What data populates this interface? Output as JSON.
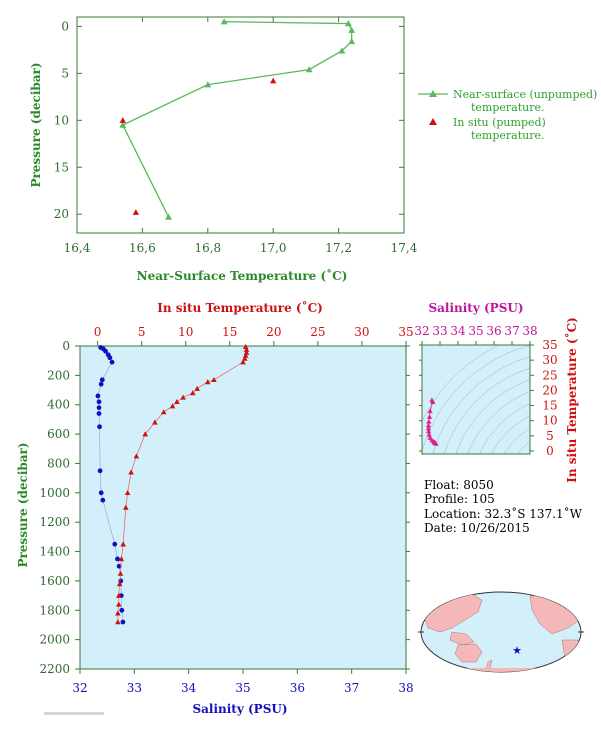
{
  "colors": {
    "axis": "#3a7a3a",
    "surface_line": "#5cb85c",
    "insitu": "#d01010",
    "salinity": "#1010c0",
    "ts_pink": "#e0208a",
    "panel_bg": "#d3effa",
    "land": "#f4b8b8",
    "ocean": "#d3effa"
  },
  "chart_data": [
    {
      "type": "line",
      "xlabel": "Near-Surface Temperature (˚C)",
      "ylabel": "Pressure (decibar)",
      "xlim": [
        16.4,
        17.4
      ],
      "ylim": [
        22,
        -1
      ],
      "xticks": [
        "16,4",
        "16,6",
        "16,8",
        "17,0",
        "17,2",
        "17,4"
      ],
      "yticks": [
        "0",
        "5",
        "10",
        "15",
        "20"
      ],
      "legend": {
        "position": "right",
        "surface_line1": "Near-surface (unpumped)",
        "surface_line2": "temperature.",
        "insitu_line1": "In situ (pumped)",
        "insitu_line2": "temperature."
      },
      "series": [
        {
          "name": "Near-surface (unpumped) temperature.",
          "points": [
            [
              16.85,
              -0.5
            ],
            [
              17.23,
              -0.3
            ],
            [
              17.24,
              0.4
            ],
            [
              17.24,
              1.6
            ],
            [
              17.21,
              2.6
            ],
            [
              17.11,
              4.6
            ],
            [
              16.8,
              6.2
            ],
            [
              16.54,
              10.5
            ],
            [
              16.68,
              20.3
            ]
          ]
        },
        {
          "name": "In situ (pumped) temperature.",
          "points": [
            [
              17.0,
              5.8
            ],
            [
              16.54,
              10.0
            ],
            [
              16.58,
              19.8
            ]
          ]
        }
      ]
    },
    {
      "type": "scatter",
      "ylabel": "Pressure (decibar)",
      "top_xlabel": "In situ Temperature (˚C)",
      "bottom_xlabel": "Salinity (PSU)",
      "temp_lim": [
        -2,
        35
      ],
      "sal_lim": [
        32,
        38
      ],
      "ylim": [
        2200,
        0
      ],
      "temp_ticks": [
        "0",
        "5",
        "10",
        "15",
        "20",
        "25",
        "30",
        "35"
      ],
      "sal_ticks": [
        "32",
        "33",
        "34",
        "35",
        "36",
        "37",
        "38"
      ],
      "yticks": [
        "0",
        "200",
        "400",
        "600",
        "800",
        "1000",
        "1200",
        "1400",
        "1600",
        "1800",
        "2000",
        "2200"
      ],
      "temperature": [
        [
          16.8,
          5
        ],
        [
          16.9,
          25
        ],
        [
          16.9,
          45
        ],
        [
          16.8,
          65
        ],
        [
          16.7,
          85
        ],
        [
          16.5,
          110
        ],
        [
          13.2,
          230
        ],
        [
          12.5,
          245
        ],
        [
          11.3,
          290
        ],
        [
          10.8,
          320
        ],
        [
          9.7,
          350
        ],
        [
          9.0,
          380
        ],
        [
          8.5,
          410
        ],
        [
          7.5,
          450
        ],
        [
          6.5,
          520
        ],
        [
          5.4,
          600
        ],
        [
          4.4,
          750
        ],
        [
          3.8,
          860
        ],
        [
          3.4,
          1000
        ],
        [
          3.2,
          1100
        ],
        [
          2.9,
          1350
        ],
        [
          2.7,
          1450
        ],
        [
          2.6,
          1550
        ],
        [
          2.5,
          1620
        ],
        [
          2.4,
          1700
        ],
        [
          2.4,
          1760
        ],
        [
          2.3,
          1820
        ],
        [
          2.3,
          1880
        ]
      ],
      "salinity": [
        [
          32.38,
          10
        ],
        [
          32.43,
          20
        ],
        [
          32.47,
          35
        ],
        [
          32.52,
          60
        ],
        [
          32.55,
          80
        ],
        [
          32.59,
          110
        ],
        [
          32.41,
          230
        ],
        [
          32.39,
          260
        ],
        [
          32.33,
          340
        ],
        [
          32.35,
          380
        ],
        [
          32.35,
          420
        ],
        [
          32.35,
          460
        ],
        [
          32.36,
          550
        ],
        [
          32.37,
          850
        ],
        [
          32.39,
          1000
        ],
        [
          32.42,
          1050
        ],
        [
          32.64,
          1350
        ],
        [
          32.69,
          1450
        ],
        [
          32.72,
          1500
        ],
        [
          32.75,
          1600
        ],
        [
          32.76,
          1700
        ],
        [
          32.77,
          1800
        ],
        [
          32.79,
          1880
        ]
      ]
    },
    {
      "type": "scatter",
      "title": "Salinity (PSU)",
      "ylabel": "In situ Temperature (˚C)",
      "xlim": [
        32,
        38
      ],
      "ylim": [
        -1,
        35
      ],
      "xticks": [
        "32",
        "33",
        "34",
        "35",
        "36",
        "37",
        "38"
      ],
      "yticks": [
        "0",
        "5",
        "10",
        "15",
        "20",
        "25",
        "30",
        "35"
      ],
      "points": [
        [
          32.55,
          16.8
        ],
        [
          32.6,
          16.2
        ],
        [
          32.45,
          13.2
        ],
        [
          32.42,
          11.3
        ],
        [
          32.38,
          9.7
        ],
        [
          32.36,
          8.5
        ],
        [
          32.36,
          7.5
        ],
        [
          32.37,
          6.5
        ],
        [
          32.4,
          5.4
        ],
        [
          32.45,
          4.4
        ],
        [
          32.55,
          3.6
        ],
        [
          32.65,
          3.1
        ],
        [
          32.7,
          2.8
        ],
        [
          32.75,
          2.6
        ],
        [
          32.78,
          2.4
        ]
      ]
    }
  ],
  "info": {
    "float": "Float:  8050",
    "profile": "Profile:  105",
    "location": "Location:  32.3˚S  137.1˚W",
    "date": "Date:  10/26/2015"
  },
  "map": {
    "marker_lat": -32.3,
    "marker_lon": -137.1
  }
}
